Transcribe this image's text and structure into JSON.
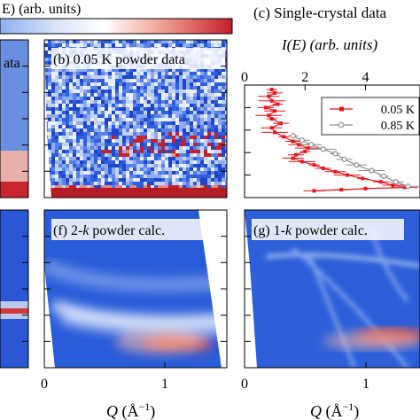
{
  "colorbar": {
    "label_left_fragment": "E) (arb. units)",
    "colors": [
      "#1f3d99",
      "#3b6fd8",
      "#a9c3f0",
      "#ffffff",
      "#f2b1a6",
      "#d8423b",
      "#b0162a"
    ]
  },
  "panels": {
    "b": {
      "title": "(b) 0.05 K powder data"
    },
    "c": {
      "title": "(c) Single-crystal data",
      "xlabel": "I(E) (arb. units)",
      "xticks": [
        "0",
        "2",
        "4"
      ]
    },
    "f": {
      "title": "(f) 2-k powder calc."
    },
    "g": {
      "title": "(g) 1-k powder calc."
    },
    "left_fragment_top": "ata"
  },
  "bottom_axis": {
    "xlabel": "Q (Å⁻¹)",
    "f_ticks": [
      "0",
      "1"
    ],
    "g_ticks": [
      "0",
      "1"
    ]
  },
  "chart_data": {
    "type": "scatter",
    "title": "(c) Single-crystal data",
    "xlabel": "I(E) (arb. units)",
    "ylabel": "",
    "xlim": [
      0,
      5.8
    ],
    "ylim": [
      0,
      1
    ],
    "legend": "top-right",
    "series": [
      {
        "name": "0.05 K",
        "color": "#e8141c",
        "x": [
          0.9,
          1.0,
          0.8,
          0.9,
          1.1,
          0.7,
          1.0,
          0.8,
          0.9,
          1.2,
          0.9,
          1.0,
          1.3,
          1.6,
          1.8,
          2.1,
          2.0,
          1.7,
          1.6,
          1.9,
          2.3,
          2.6,
          3.0,
          3.4,
          3.9,
          4.5,
          4.9,
          5.3,
          4.0,
          3.2,
          2.3
        ],
        "y": [
          0.96,
          0.93,
          0.9,
          0.86,
          0.83,
          0.8,
          0.77,
          0.73,
          0.7,
          0.66,
          0.62,
          0.58,
          0.54,
          0.5,
          0.47,
          0.44,
          0.41,
          0.38,
          0.35,
          0.32,
          0.29,
          0.26,
          0.23,
          0.2,
          0.17,
          0.14,
          0.11,
          0.09,
          0.08,
          0.07,
          0.06
        ]
      },
      {
        "name": "0.85 K",
        "color": "#8c8c8c",
        "x": [
          1.6,
          1.9,
          2.2,
          2.6,
          3.0,
          3.3,
          3.7,
          4.2,
          4.6,
          5.0,
          5.4
        ],
        "y": [
          0.55,
          0.51,
          0.47,
          0.43,
          0.39,
          0.34,
          0.29,
          0.24,
          0.19,
          0.14,
          0.1
        ]
      }
    ]
  }
}
